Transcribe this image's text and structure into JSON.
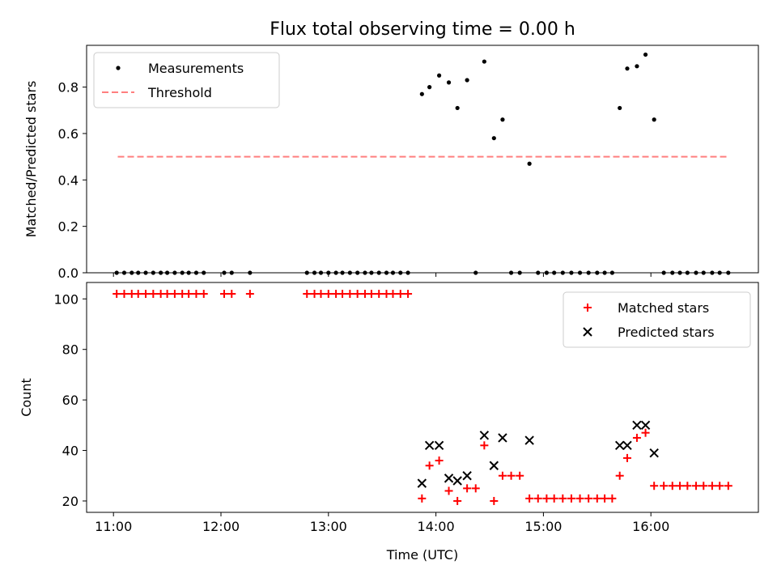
{
  "figure": {
    "title": "Flux total observing time = 0.00 h"
  },
  "chart_data": [
    {
      "type": "scatter",
      "panel": "top",
      "xlabel": "",
      "ylabel": "Matched/Predicted stars",
      "x_ticks": [
        "11:00",
        "12:00",
        "13:00",
        "14:00",
        "15:00",
        "16:00"
      ],
      "x_tick_hours": [
        11,
        12,
        13,
        14,
        15,
        16
      ],
      "xlim": [
        10.75,
        17.0
      ],
      "ylim": [
        0,
        0.98
      ],
      "y_ticks": [
        0.0,
        0.2,
        0.4,
        0.6,
        0.8
      ],
      "y_tick_labels": [
        "0.0",
        "0.2",
        "0.4",
        "0.6",
        "0.8"
      ],
      "grid": false,
      "legend": {
        "position": "top-left",
        "entries": [
          "Measurements",
          "Threshold"
        ]
      },
      "threshold": {
        "name": "Threshold",
        "value": 0.5,
        "x_range": [
          11.04,
          16.72
        ],
        "color": "#ff7f7f"
      },
      "series": [
        {
          "name": "Measurements",
          "color": "#000000",
          "x": [
            11.03,
            11.1,
            11.17,
            11.23,
            11.3,
            11.37,
            11.44,
            11.5,
            11.57,
            11.64,
            11.7,
            11.77,
            11.84,
            12.03,
            12.1,
            12.27,
            12.8,
            12.87,
            12.93,
            13.0,
            13.07,
            13.13,
            13.2,
            13.27,
            13.34,
            13.4,
            13.47,
            13.54,
            13.6,
            13.67,
            13.74,
            13.87,
            13.94,
            14.03,
            14.12,
            14.2,
            14.29,
            14.37,
            14.45,
            14.54,
            14.62,
            14.7,
            14.78,
            14.87,
            14.95,
            15.03,
            15.1,
            15.18,
            15.26,
            15.34,
            15.42,
            15.5,
            15.57,
            15.64,
            15.71,
            15.78,
            15.87,
            15.95,
            16.03,
            16.12,
            16.2,
            16.27,
            16.34,
            16.42,
            16.49,
            16.57,
            16.64,
            16.72
          ],
          "y": [
            0,
            0,
            0,
            0,
            0,
            0,
            0,
            0,
            0,
            0,
            0,
            0,
            0,
            0,
            0,
            0,
            0,
            0,
            0,
            0,
            0,
            0,
            0,
            0,
            0,
            0,
            0,
            0,
            0,
            0,
            0,
            0.77,
            0.8,
            0.85,
            0.82,
            0.71,
            0.83,
            0,
            0.91,
            0.58,
            0.66,
            0,
            0,
            0.47,
            0,
            0,
            0,
            0,
            0,
            0,
            0,
            0,
            0,
            0,
            0.71,
            0.88,
            0.89,
            0.94,
            0.66,
            0,
            0,
            0,
            0,
            0,
            0,
            0,
            0,
            0
          ]
        }
      ]
    },
    {
      "type": "scatter",
      "panel": "bottom",
      "xlabel": "Time (UTC)",
      "ylabel": "Count",
      "x_ticks": [
        "11:00",
        "12:00",
        "13:00",
        "14:00",
        "15:00",
        "16:00"
      ],
      "x_tick_hours": [
        11,
        12,
        13,
        14,
        15,
        16
      ],
      "xlim": [
        10.75,
        17.0
      ],
      "ylim": [
        15.5,
        106.5
      ],
      "y_ticks": [
        20,
        40,
        60,
        80,
        100
      ],
      "y_tick_labels": [
        "20",
        "40",
        "60",
        "80",
        "100"
      ],
      "grid": false,
      "legend": {
        "position": "top-right",
        "entries": [
          "Matched stars",
          "Predicted stars"
        ]
      },
      "series": [
        {
          "name": "Matched stars",
          "marker": "plus",
          "color": "#ff0000",
          "x": [
            11.03,
            11.1,
            11.17,
            11.23,
            11.3,
            11.37,
            11.44,
            11.5,
            11.57,
            11.64,
            11.7,
            11.77,
            11.84,
            12.03,
            12.1,
            12.27,
            12.8,
            12.87,
            12.93,
            13.0,
            13.07,
            13.13,
            13.2,
            13.27,
            13.34,
            13.4,
            13.47,
            13.54,
            13.6,
            13.67,
            13.74,
            13.87,
            13.94,
            14.03,
            14.12,
            14.2,
            14.29,
            14.37,
            14.45,
            14.54,
            14.62,
            14.7,
            14.78,
            14.87,
            14.95,
            15.03,
            15.1,
            15.18,
            15.26,
            15.34,
            15.42,
            15.5,
            15.57,
            15.64,
            15.71,
            15.78,
            15.87,
            15.95,
            16.03,
            16.12,
            16.2,
            16.27,
            16.34,
            16.42,
            16.49,
            16.57,
            16.64,
            16.72
          ],
          "y": [
            102,
            102,
            102,
            102,
            102,
            102,
            102,
            102,
            102,
            102,
            102,
            102,
            102,
            102,
            102,
            102,
            102,
            102,
            102,
            102,
            102,
            102,
            102,
            102,
            102,
            102,
            102,
            102,
            102,
            102,
            102,
            21,
            34,
            36,
            24,
            20,
            25,
            25,
            42,
            20,
            30,
            30,
            30,
            21,
            21,
            21,
            21,
            21,
            21,
            21,
            21,
            21,
            21,
            21,
            30,
            37,
            45,
            47,
            26,
            26,
            26,
            26,
            26,
            26,
            26,
            26,
            26,
            26
          ]
        },
        {
          "name": "Predicted stars",
          "marker": "x",
          "color": "#000000",
          "x": [
            13.87,
            13.94,
            14.03,
            14.12,
            14.2,
            14.29,
            14.45,
            14.54,
            14.62,
            14.87,
            15.71,
            15.78,
            15.87,
            15.95,
            16.03
          ],
          "y": [
            27,
            42,
            42,
            29,
            28,
            30,
            46,
            34,
            45,
            44,
            42,
            42,
            50,
            50,
            39
          ]
        }
      ]
    }
  ]
}
